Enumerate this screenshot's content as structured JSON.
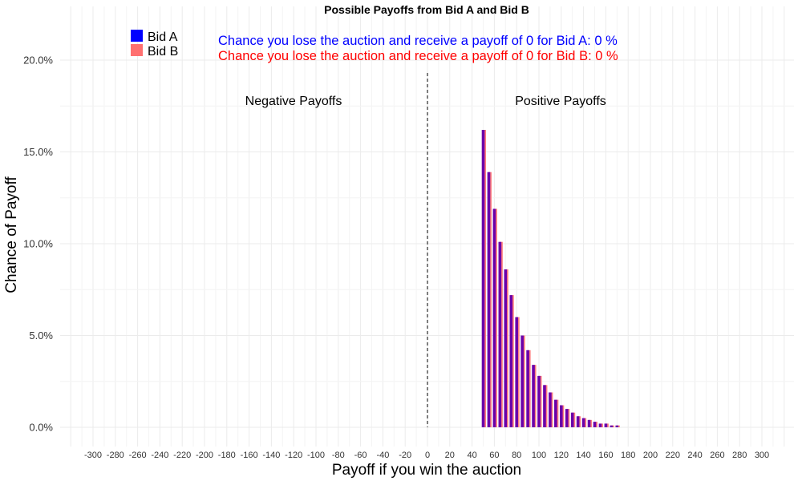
{
  "chart_data": {
    "type": "bar",
    "title": "Possible Payoffs from Bid A and Bid B",
    "xlabel": "Payoff if you win the auction",
    "ylabel": "Chance of Payoff",
    "xlim": [
      -320,
      320
    ],
    "ylim": [
      0,
      0.22
    ],
    "x_ticks": [
      -300,
      -280,
      -260,
      -240,
      -220,
      -200,
      -180,
      -160,
      -140,
      -120,
      -100,
      -80,
      -60,
      -40,
      -20,
      0,
      20,
      40,
      60,
      80,
      100,
      120,
      140,
      160,
      180,
      200,
      220,
      240,
      260,
      280,
      300
    ],
    "y_ticks": [
      0,
      0.05,
      0.1,
      0.15,
      0.2
    ],
    "y_tick_labels": [
      "0.0%",
      "5.0%",
      "10.0%",
      "15.0%",
      "20.0%"
    ],
    "grid": true,
    "legend_position": "top-left",
    "reference_line_x": 0,
    "region_labels": {
      "negative": "Negative Payoffs",
      "positive": "Positive Payoffs"
    },
    "series": [
      {
        "name": "Bid A",
        "color": "#0000ff",
        "x": [
          50,
          55,
          60,
          65,
          70,
          75,
          80,
          85,
          90,
          95,
          100,
          105,
          110,
          115,
          120,
          125,
          130,
          135,
          140,
          145,
          150,
          155,
          160,
          165,
          170
        ],
        "values": [
          0.162,
          0.139,
          0.119,
          0.101,
          0.086,
          0.072,
          0.06,
          0.05,
          0.042,
          0.034,
          0.028,
          0.023,
          0.019,
          0.015,
          0.012,
          0.01,
          0.008,
          0.006,
          0.005,
          0.004,
          0.003,
          0.002,
          0.002,
          0.001,
          0.001
        ]
      },
      {
        "name": "Bid B",
        "color": "#ff7070",
        "x": [
          50,
          55,
          60,
          65,
          70,
          75,
          80,
          85,
          90,
          95,
          100,
          105,
          110,
          115,
          120,
          125,
          130,
          135,
          140,
          145,
          150,
          155,
          160,
          165,
          170
        ],
        "values": [
          0.162,
          0.139,
          0.119,
          0.101,
          0.086,
          0.072,
          0.06,
          0.05,
          0.042,
          0.034,
          0.028,
          0.023,
          0.019,
          0.015,
          0.012,
          0.01,
          0.008,
          0.006,
          0.005,
          0.004,
          0.003,
          0.002,
          0.002,
          0.001,
          0.001
        ]
      }
    ],
    "overlap_color": "#6a00aa",
    "annotations": {
      "lose_a": "Chance you lose the auction and receive a payoff of 0 for Bid A:  0 %",
      "lose_b": "Chance you lose the auction and receive a payoff of 0 for Bid B:  0 %",
      "lose_a_color": "#0000ff",
      "lose_b_color": "#ff0000"
    }
  }
}
